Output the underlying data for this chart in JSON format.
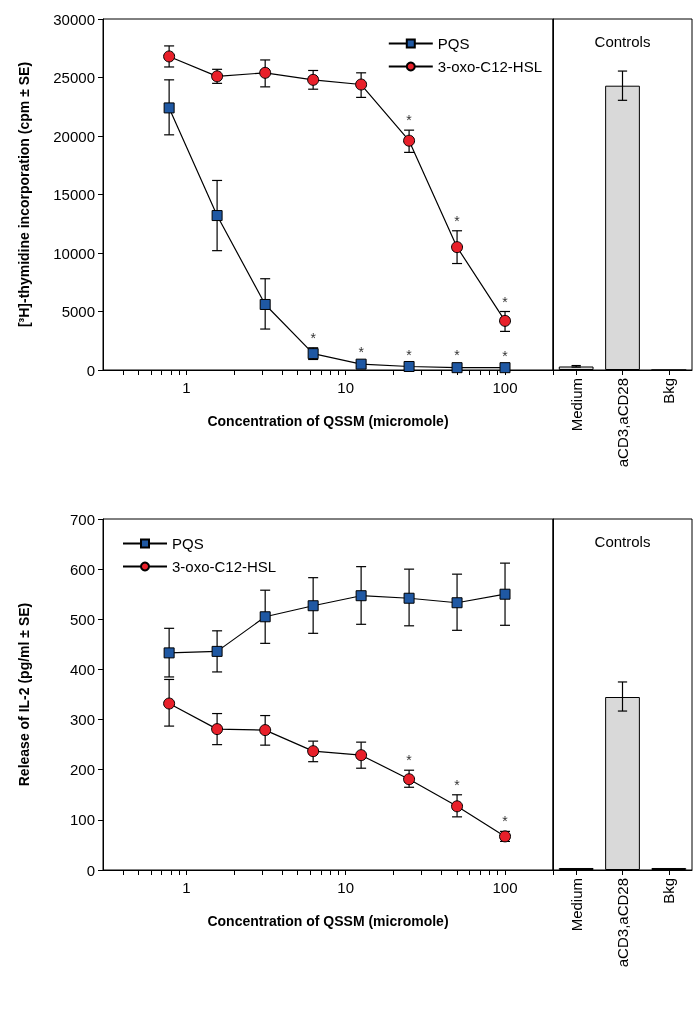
{
  "chart_data": [
    {
      "type": "line",
      "xlabel": "Concentration of QSSM (micromole)",
      "ylabel": "[³H]-thymidine incorporation (cpm ± SE)",
      "log": "x",
      "legend": "top right",
      "grid": false,
      "xlim": [
        0.3,
        200
      ],
      "xticks": [
        {
          "value": 0.4,
          "label": null
        },
        {
          "value": 0.5,
          "label": null
        },
        {
          "value": 0.6,
          "label": null
        },
        {
          "value": 0.7,
          "label": null
        },
        {
          "value": 0.8,
          "label": null
        },
        {
          "value": 0.9,
          "label": null
        },
        1,
        {
          "value": 2,
          "label": null
        },
        {
          "value": 3,
          "label": null
        },
        {
          "value": 4,
          "label": null
        },
        {
          "value": 5,
          "label": null
        },
        {
          "value": 6,
          "label": null
        },
        {
          "value": 7,
          "label": null
        },
        {
          "value": 8,
          "label": null
        },
        {
          "value": 9,
          "label": null
        },
        10,
        {
          "value": 20,
          "label": null
        },
        {
          "value": 30,
          "label": null
        },
        {
          "value": 40,
          "label": null
        },
        {
          "value": 50,
          "label": null
        },
        {
          "value": 60,
          "label": null
        },
        {
          "value": 70,
          "label": null
        },
        {
          "value": 80,
          "label": null
        },
        {
          "value": 90,
          "label": null
        },
        100,
        {
          "value": 200,
          "label": null
        }
      ],
      "ylim": [
        0,
        30000
      ],
      "yticks": [
        0,
        5000,
        10000,
        15000,
        20000,
        25000,
        30000
      ],
      "x": [
        0.78,
        1.56,
        3.125,
        6.25,
        12.5,
        25,
        50,
        100
      ],
      "series": [
        {
          "name": "PQS",
          "color": "#1f58a3",
          "marker": "square",
          "values": [
            22400,
            13200,
            5600,
            1400,
            500,
            300,
            200,
            200
          ],
          "errors": [
            [
              20100,
              24800
            ],
            [
              10200,
              16200
            ],
            [
              3500,
              7800
            ],
            [
              900,
              1900
            ],
            [
              300,
              700
            ],
            null,
            null,
            null
          ]
        },
        {
          "name": "3-oxo-C12-HSL",
          "color": "#e8202a",
          "marker": "circle",
          "values": [
            26800,
            25100,
            25400,
            24800,
            24400,
            19600,
            10500,
            4200
          ],
          "errors": [
            [
              25900,
              27700
            ],
            [
              24500,
              25700
            ],
            [
              24200,
              26500
            ],
            [
              24000,
              25600
            ],
            [
              23300,
              25400
            ],
            [
              18600,
              20500
            ],
            [
              9100,
              11900
            ],
            [
              3300,
              5000
            ]
          ]
        }
      ],
      "annotations": [
        {
          "text": "*",
          "x": 6.25,
          "y": 1850
        },
        {
          "text": "*",
          "x": 12.5,
          "y": 700
        },
        {
          "text": "*",
          "x": 25,
          "y": 450
        },
        {
          "text": "*",
          "x": 50,
          "y": 400
        },
        {
          "text": "*",
          "x": 100,
          "y": 350
        },
        {
          "text": "*",
          "x": 25,
          "y": 20500
        },
        {
          "text": "*",
          "x": 50,
          "y": 11900
        },
        {
          "text": "*",
          "x": 100,
          "y": 5000
        }
      ]
    },
    {
      "type": "bar",
      "title": "Controls",
      "categories": [
        "Medium",
        "aCD3,aCD28",
        "Bkg"
      ],
      "values": [
        300,
        24300,
        0
      ],
      "errors": [
        [
          250,
          380
        ],
        [
          23050,
          25550
        ],
        null
      ],
      "color": "#d9d9d9",
      "ylim": [
        0,
        30000
      ],
      "tick_labels": "x",
      "grid": false
    },
    {
      "type": "line",
      "xlabel": "Concentration of QSSM (micromole)",
      "ylabel": "Release of IL-2 (pg/ml ± SE)",
      "log": "x",
      "legend": "top left",
      "grid": false,
      "xlim": [
        0.3,
        200
      ],
      "xticks": [
        {
          "value": 0.4,
          "label": null
        },
        {
          "value": 0.5,
          "label": null
        },
        {
          "value": 0.6,
          "label": null
        },
        {
          "value": 0.7,
          "label": null
        },
        {
          "value": 0.8,
          "label": null
        },
        {
          "value": 0.9,
          "label": null
        },
        1,
        {
          "value": 2,
          "label": null
        },
        {
          "value": 3,
          "label": null
        },
        {
          "value": 4,
          "label": null
        },
        {
          "value": 5,
          "label": null
        },
        {
          "value": 6,
          "label": null
        },
        {
          "value": 7,
          "label": null
        },
        {
          "value": 8,
          "label": null
        },
        {
          "value": 9,
          "label": null
        },
        10,
        {
          "value": 20,
          "label": null
        },
        {
          "value": 30,
          "label": null
        },
        {
          "value": 40,
          "label": null
        },
        {
          "value": 50,
          "label": null
        },
        {
          "value": 60,
          "label": null
        },
        {
          "value": 70,
          "label": null
        },
        {
          "value": 80,
          "label": null
        },
        {
          "value": 90,
          "label": null
        },
        100,
        {
          "value": 200,
          "label": null
        }
      ],
      "ylim": [
        0,
        700
      ],
      "yticks": [
        0,
        100,
        200,
        300,
        400,
        500,
        600,
        700
      ],
      "x": [
        0.78,
        1.56,
        3.125,
        6.25,
        12.5,
        25,
        50,
        100
      ],
      "series": [
        {
          "name": "PQS",
          "color": "#1f58a3",
          "marker": "square",
          "values": [
            433,
            436,
            505,
            527,
            547,
            542,
            533,
            550
          ],
          "errors": [
            [
              385,
              482
            ],
            [
              395,
              477
            ],
            [
              452,
              558
            ],
            [
              472,
              583
            ],
            [
              490,
              605
            ],
            [
              487,
              600
            ],
            [
              478,
              590
            ],
            [
              488,
              612
            ]
          ]
        },
        {
          "name": "3-oxo-C12-HSL",
          "color": "#e8202a",
          "marker": "circle",
          "values": [
            332,
            281,
            279,
            237,
            229,
            181,
            127,
            67
          ],
          "errors": [
            [
              287,
              380
            ],
            [
              250,
              312
            ],
            [
              249,
              308
            ],
            [
              216,
              257
            ],
            [
              203,
              255
            ],
            [
              165,
              199
            ],
            [
              106,
              150
            ],
            [
              57,
              77
            ]
          ]
        }
      ],
      "annotations": [
        {
          "text": "*",
          "x": 25,
          "y": 199
        },
        {
          "text": "*",
          "x": 50,
          "y": 150
        },
        {
          "text": "*",
          "x": 100,
          "y": 77
        }
      ]
    },
    {
      "type": "bar",
      "title": "Controls",
      "categories": [
        "Medium",
        "aCD3,aCD28",
        "Bkg"
      ],
      "values": [
        4,
        345,
        4
      ],
      "errors": [
        null,
        [
          317,
          375
        ],
        null
      ],
      "color": "#d9d9d9",
      "ylim": [
        0,
        700
      ],
      "tick_labels": "x",
      "grid": false
    }
  ]
}
